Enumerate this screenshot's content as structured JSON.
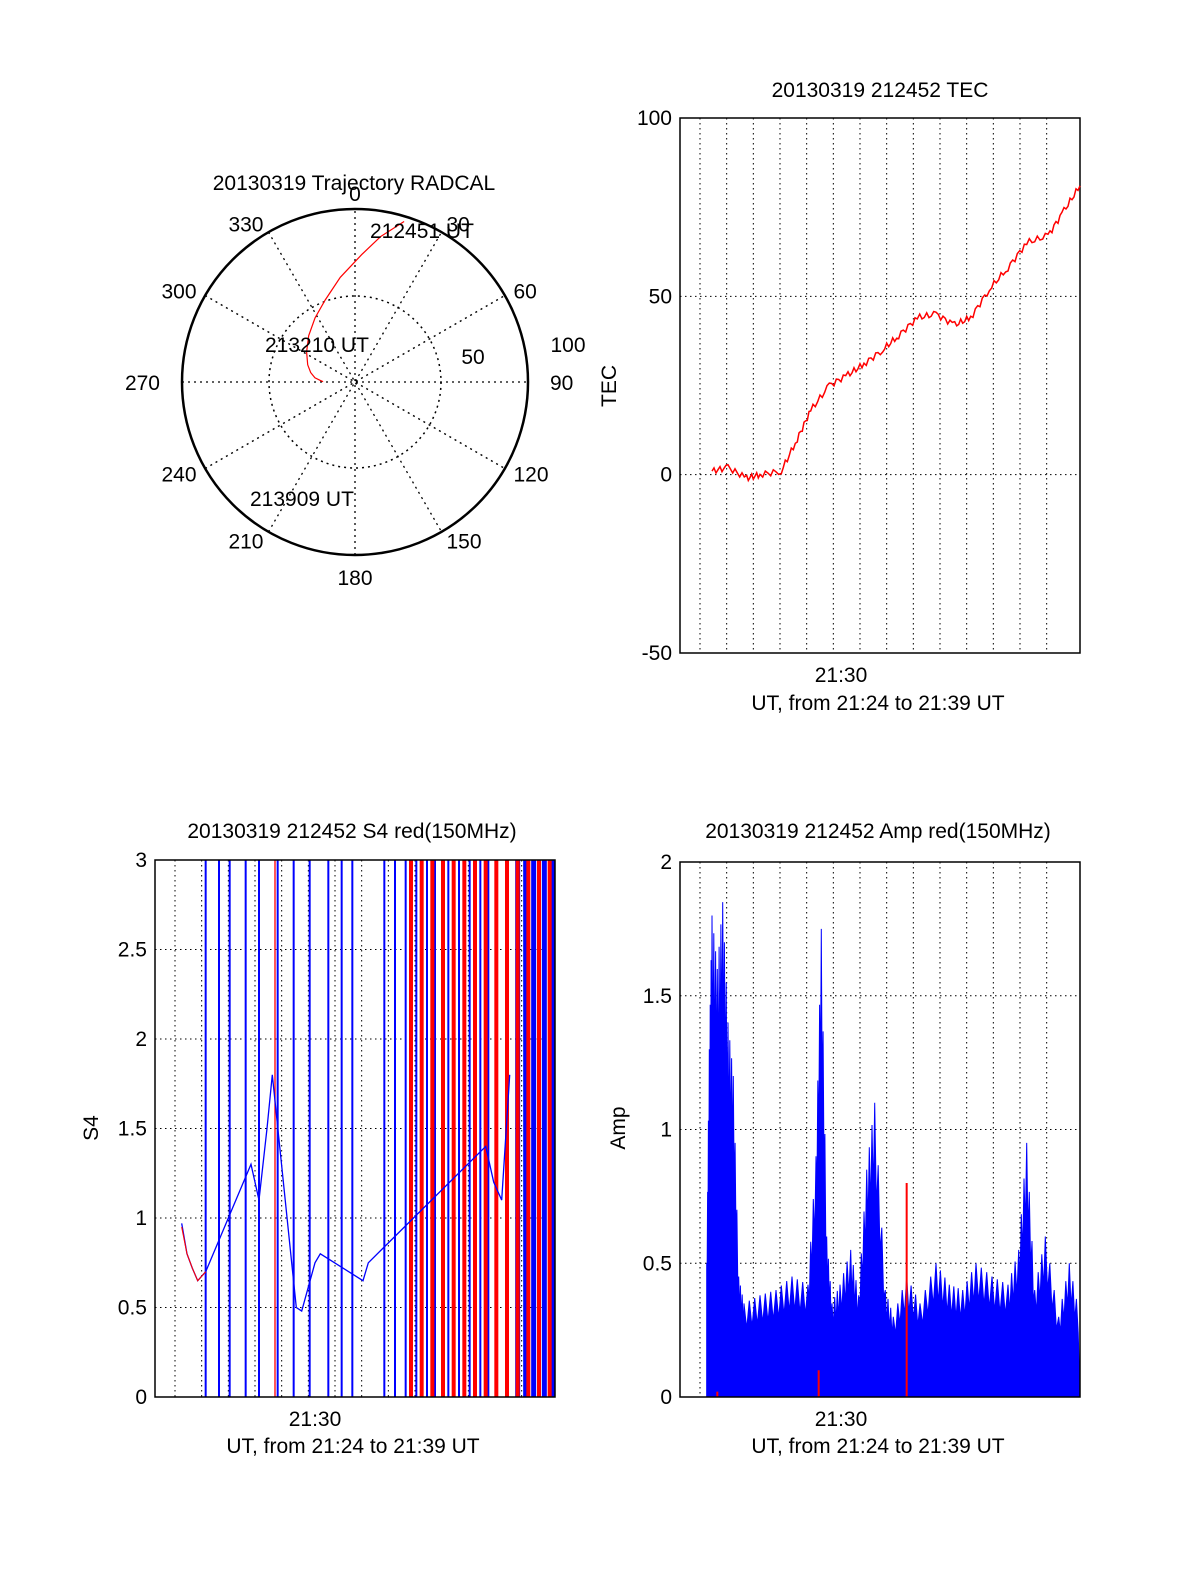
{
  "chart_data": [
    {
      "id": "trajectory",
      "type": "polar",
      "title": "20130319 Trajectory RADCAL",
      "angle_labels": [
        "0",
        "30",
        "60",
        "90",
        "120",
        "150",
        "180",
        "210",
        "240",
        "270",
        "300",
        "330"
      ],
      "radial_labels": [
        "50",
        "100"
      ],
      "rlim": [
        0,
        100
      ],
      "series": [
        {
          "name": "trajectory",
          "color": "#ff0000",
          "azimuth": [
            17,
            10,
            3,
            -8,
            -20,
            -32,
            -45,
            -58,
            -70,
            -78,
            -84,
            -87,
            -89.5
          ],
          "elevation": [
            0,
            12,
            24,
            37,
            48,
            55,
            61,
            66,
            70,
            73,
            76,
            79,
            81
          ]
        }
      ],
      "annotations": [
        {
          "text": "212451 UT",
          "azimuth": 17,
          "elevation": 0
        },
        {
          "text": "213210 UT",
          "azimuth": -45,
          "elevation": 61
        },
        {
          "text": "213909 UT",
          "azimuth": -103,
          "elevation": 82
        }
      ]
    },
    {
      "id": "tec",
      "type": "line",
      "title": "20130319 212452 TEC",
      "xlabel": "UT, from 21:24 to 21:39 UT",
      "ylabel": "TEC",
      "xtick_label": "21:30",
      "xlim": [
        0,
        15
      ],
      "ylim": [
        -50,
        100
      ],
      "yticks": [
        "-50",
        "0",
        "50",
        "100"
      ],
      "series": [
        {
          "name": "TEC",
          "color": "#ff0000",
          "x": [
            1.2,
            1.8,
            2.5,
            3.0,
            3.8,
            4.4,
            4.9,
            5.6,
            6.3,
            6.9,
            7.6,
            8.2,
            8.9,
            9.6,
            10.3,
            10.9,
            11.6,
            12.3,
            13.0,
            13.8,
            14.4,
            15.0
          ],
          "y": [
            1,
            2,
            -1,
            0,
            1,
            10,
            18,
            25,
            28,
            31,
            35,
            39,
            44,
            45,
            42,
            44,
            52,
            58,
            65,
            67,
            74,
            81
          ]
        }
      ]
    },
    {
      "id": "s4",
      "type": "line",
      "title": "20130319 212452 S4 red(150MHz)",
      "xlabel": "UT, from 21:24 to 21:39 UT",
      "ylabel": "S4",
      "xtick_label": "21:30",
      "xlim": [
        0,
        15
      ],
      "ylim": [
        0,
        3
      ],
      "yticks": [
        "0",
        "0.5",
        "1",
        "1.5",
        "2",
        "2.5",
        "3"
      ],
      "series": [
        {
          "name": "S4 red",
          "color": "#ff0000",
          "x": [
            1.0,
            1.2,
            1.4,
            1.6,
            1.9
          ],
          "y": [
            0.95,
            0.8,
            0.72,
            0.65,
            0.7
          ]
        },
        {
          "name": "S4 blue",
          "color": "#0000ff",
          "x": [
            1.0,
            1.2,
            1.4,
            1.6,
            1.9,
            3.6,
            3.9,
            4.2,
            4.4,
            5.3,
            5.5,
            6.0,
            6.2,
            7.8,
            8.0,
            12.4,
            12.7,
            13.0,
            13.3
          ],
          "y": [
            0.97,
            0.8,
            0.72,
            0.65,
            0.7,
            1.3,
            1.1,
            1.5,
            1.8,
            0.5,
            0.48,
            0.75,
            0.8,
            0.65,
            0.75,
            1.4,
            1.2,
            1.1,
            1.8
          ]
        }
      ],
      "spikes": {
        "blue_x": [
          1.9,
          2.4,
          2.8,
          3.4,
          3.9,
          4.6,
          5.2,
          5.8,
          6.5,
          7.0,
          7.4,
          8.6,
          9.0,
          9.4,
          9.8,
          10.2,
          10.5,
          11.0,
          11.4,
          11.8,
          12.2,
          12.5,
          13.6,
          13.9,
          14.2,
          14.6,
          14.9
        ],
        "red_x": [
          4.5,
          9.6,
          10.0,
          10.4,
          10.8,
          11.2,
          11.6,
          12.0,
          12.4,
          12.8,
          13.2,
          13.6,
          14.0,
          14.4,
          14.8
        ],
        "top": 3
      }
    },
    {
      "id": "amp",
      "type": "line",
      "title": "20130319 212452 Amp red(150MHz)",
      "xlabel": "UT, from 21:24 to 21:39 UT",
      "ylabel": "Amp",
      "xtick_label": "21:30",
      "xlim": [
        0,
        15
      ],
      "ylim": [
        0,
        2
      ],
      "yticks": [
        "0",
        "0.5",
        "1",
        "1.5",
        "2"
      ],
      "series": [
        {
          "name": "Amp blue envelope",
          "color": "#0000ff",
          "x": [
            1.0,
            1.1,
            1.2,
            1.4,
            1.6,
            1.8,
            2.0,
            2.2,
            2.4,
            3.0,
            3.6,
            4.2,
            4.8,
            5.1,
            5.3,
            5.5,
            5.7,
            6.0,
            6.4,
            6.7,
            7.0,
            7.3,
            7.7,
            8.0,
            8.5,
            9.0,
            9.6,
            10.1,
            10.6,
            11.1,
            11.7,
            12.3,
            12.7,
            13.0,
            13.3,
            13.7,
            14.2,
            14.6,
            15.0
          ],
          "y": [
            0.5,
            1.3,
            1.8,
            1.6,
            1.85,
            1.4,
            1.2,
            0.45,
            0.35,
            0.38,
            0.4,
            0.45,
            0.42,
            0.9,
            1.75,
            0.6,
            0.35,
            0.42,
            0.55,
            0.38,
            0.85,
            1.1,
            0.4,
            0.3,
            0.45,
            0.35,
            0.5,
            0.42,
            0.4,
            0.5,
            0.45,
            0.42,
            0.55,
            0.95,
            0.4,
            0.6,
            0.3,
            0.5,
            0.3
          ]
        }
      ],
      "red_marks": [
        {
          "x": 1.4,
          "y": 0.02
        },
        {
          "x": 5.2,
          "y": 0.1
        },
        {
          "x": 8.5,
          "y": 0.8
        }
      ]
    }
  ]
}
